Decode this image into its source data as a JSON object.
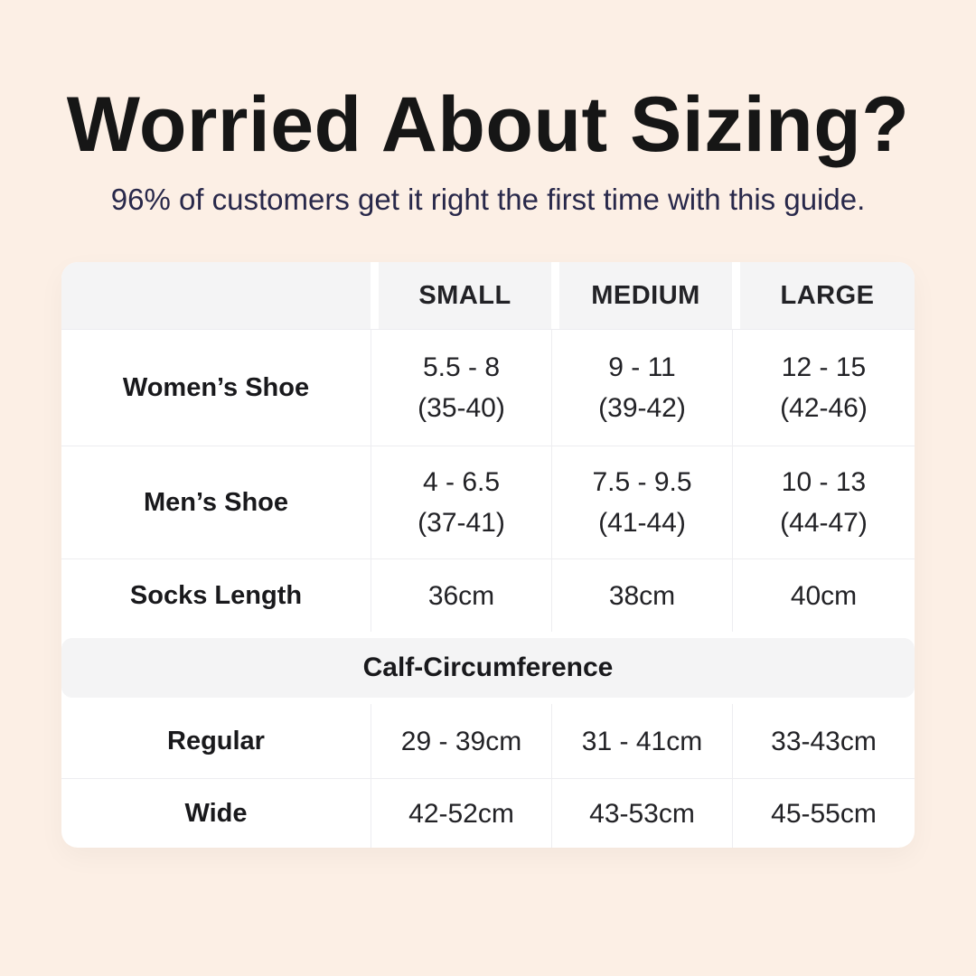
{
  "page": {
    "title": "Worried About Sizing?",
    "subtitle": "96% of customers get it right the first time with this guide."
  },
  "colors": {
    "background": "#fcefe5",
    "card": "#ffffff",
    "header_cell": "#f4f4f5",
    "divider": "#ededf0",
    "title_text": "#161616",
    "subtitle_text": "#28284a",
    "table_text": "#222226"
  },
  "table": {
    "columns": [
      "",
      "SMALL",
      "MEDIUM",
      "LARGE"
    ],
    "rows": [
      {
        "label": "Women’s Shoe",
        "cells": [
          {
            "main": "5.5 - 8",
            "sub": "(35-40)"
          },
          {
            "main": "9 - 11",
            "sub": "(39-42)"
          },
          {
            "main": "12 - 15",
            "sub": "(42-46)"
          }
        ]
      },
      {
        "label": "Men’s Shoe",
        "cells": [
          {
            "main": "4 - 6.5",
            "sub": "(37-41)"
          },
          {
            "main": "7.5 - 9.5",
            "sub": "(41-44)"
          },
          {
            "main": "10 - 13",
            "sub": "(44-47)"
          }
        ]
      },
      {
        "label": "Socks Length",
        "cells": [
          {
            "main": "36cm",
            "sub": ""
          },
          {
            "main": "38cm",
            "sub": ""
          },
          {
            "main": "40cm",
            "sub": ""
          }
        ]
      },
      {
        "label": "Regular",
        "cells": [
          {
            "main": "29 - 39cm",
            "sub": ""
          },
          {
            "main": "31 - 41cm",
            "sub": ""
          },
          {
            "main": "33-43cm",
            "sub": ""
          }
        ]
      },
      {
        "label": "Wide",
        "cells": [
          {
            "main": "42-52cm",
            "sub": ""
          },
          {
            "main": "43-53cm",
            "sub": ""
          },
          {
            "main": "45-55cm",
            "sub": ""
          }
        ]
      }
    ],
    "section_header": "Calf-Circumference"
  },
  "chart_data": {
    "type": "table",
    "title": "Worried About Sizing?",
    "subtitle": "96% of customers get it right the first time with this guide.",
    "columns": [
      "",
      "SMALL",
      "MEDIUM",
      "LARGE"
    ],
    "rows": [
      [
        "Women’s Shoe",
        "5.5 - 8 (35-40)",
        "9 - 11 (39-42)",
        "12 - 15 (42-46)"
      ],
      [
        "Men’s Shoe",
        "4 - 6.5 (37-41)",
        "7.5 - 9.5 (41-44)",
        "10 - 13 (44-47)"
      ],
      [
        "Socks Length",
        "36cm",
        "38cm",
        "40cm"
      ],
      [
        "Calf-Circumference (section header)",
        "",
        "",
        ""
      ],
      [
        "Regular",
        "29 - 39cm",
        "31 - 41cm",
        "33-43cm"
      ],
      [
        "Wide",
        "42-52cm",
        "43-53cm",
        "45-55cm"
      ]
    ]
  }
}
